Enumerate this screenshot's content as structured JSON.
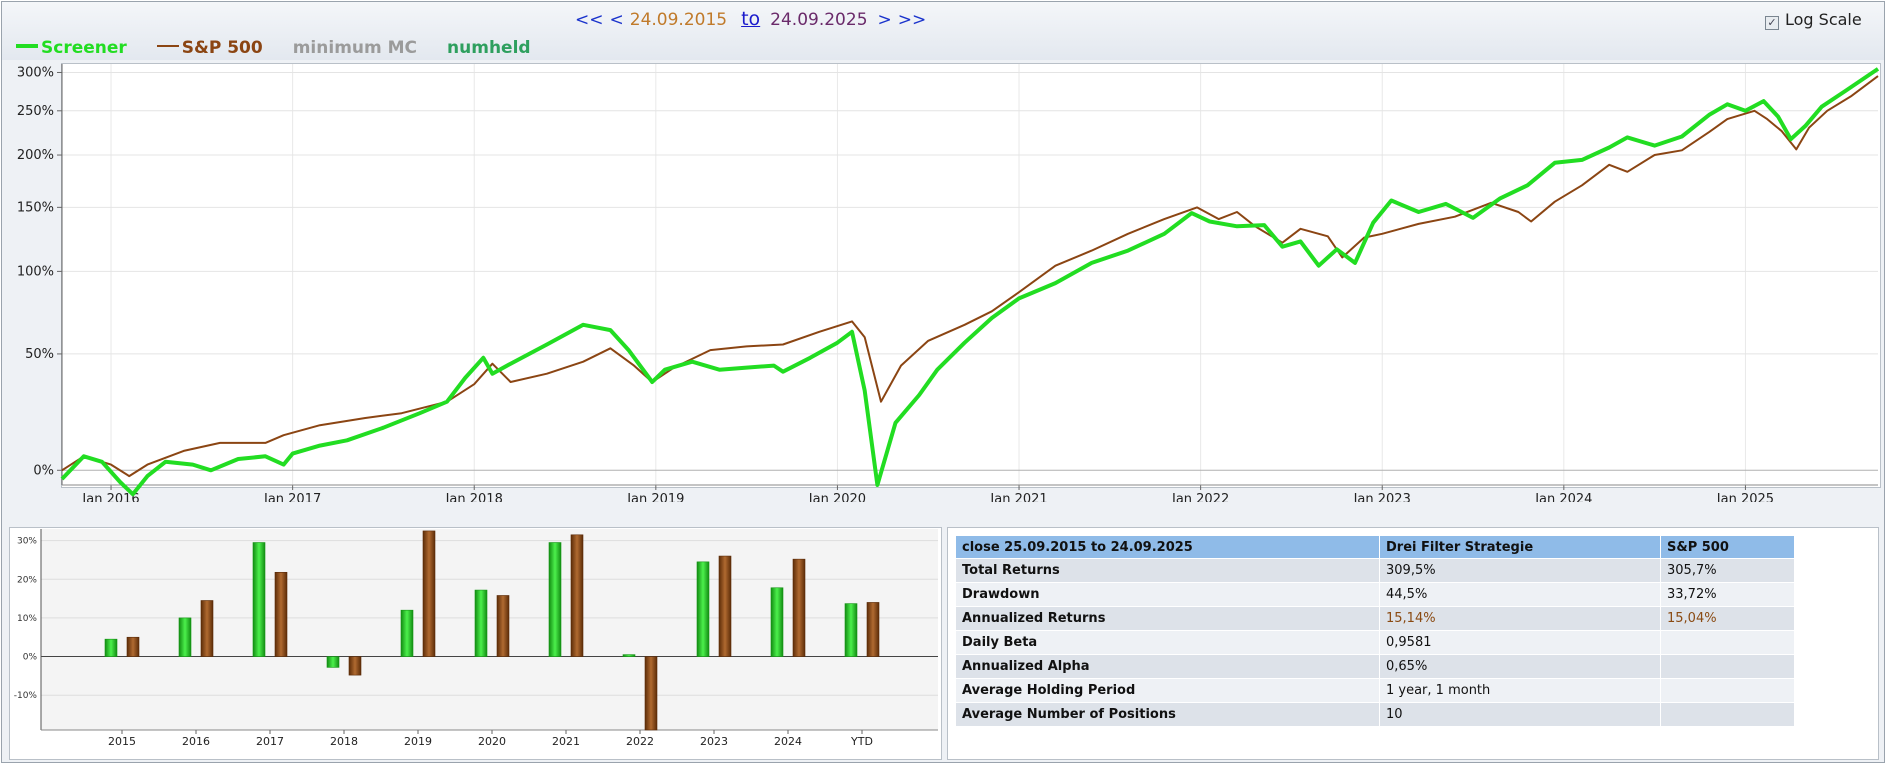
{
  "nav": {
    "first": "<<",
    "prev": "<",
    "start_date": "24.09.2015",
    "to_label": "to",
    "end_date": "24.09.2025",
    "next": ">",
    "last": ">>"
  },
  "log_scale": {
    "label": "Log Scale",
    "checked": true,
    "check_glyph": "✓"
  },
  "legend": [
    {
      "label": "Screener",
      "color": "#22dd22",
      "swatch": true
    },
    {
      "label": "S&P 500",
      "color": "#8b4513",
      "swatch": true
    },
    {
      "label": "minimum MC",
      "color": "#9b9b9b",
      "swatch": false
    },
    {
      "label": "numheld",
      "color": "#2e9f5e",
      "swatch": false
    }
  ],
  "chart_data": [
    {
      "type": "line",
      "log_scale": true,
      "x_tick_labels": [
        "Jan 2016",
        "Jan 2017",
        "Jan 2018",
        "Jan 2019",
        "Jan 2020",
        "Jan 2021",
        "Jan 2022",
        "Jan 2023",
        "Jan 2024",
        "Jan 2025"
      ],
      "x_ticks": [
        2016,
        2017,
        2018,
        2019,
        2020,
        2021,
        2022,
        2023,
        2024,
        2025
      ],
      "xlim": [
        2015.73,
        2025.73
      ],
      "y_ticks": [
        0,
        50,
        100,
        150,
        200,
        250,
        300
      ],
      "y_tick_labels": [
        "0%",
        "50%",
        "100%",
        "150%",
        "200%",
        "250%",
        "300%"
      ],
      "ylim": [
        -5,
        312
      ],
      "grid": true,
      "series": [
        {
          "name": "Screener",
          "color": "#22dd22",
          "points": [
            [
              2015.73,
              -3
            ],
            [
              2015.85,
              5
            ],
            [
              2015.95,
              3
            ],
            [
              2016.05,
              -4
            ],
            [
              2016.12,
              -8
            ],
            [
              2016.2,
              -2
            ],
            [
              2016.3,
              3
            ],
            [
              2016.45,
              2
            ],
            [
              2016.55,
              0
            ],
            [
              2016.7,
              4
            ],
            [
              2016.85,
              5
            ],
            [
              2016.95,
              2
            ],
            [
              2017.0,
              6
            ],
            [
              2017.15,
              9
            ],
            [
              2017.3,
              11
            ],
            [
              2017.5,
              16
            ],
            [
              2017.7,
              22
            ],
            [
              2017.85,
              27
            ],
            [
              2017.95,
              38
            ],
            [
              2018.05,
              48
            ],
            [
              2018.1,
              40
            ],
            [
              2018.2,
              45
            ],
            [
              2018.4,
              55
            ],
            [
              2018.6,
              66
            ],
            [
              2018.75,
              63
            ],
            [
              2018.85,
              52
            ],
            [
              2018.98,
              36
            ],
            [
              2019.05,
              42
            ],
            [
              2019.2,
              46
            ],
            [
              2019.35,
              42
            ],
            [
              2019.5,
              43
            ],
            [
              2019.65,
              44
            ],
            [
              2019.7,
              41
            ],
            [
              2019.85,
              48
            ],
            [
              2020.0,
              56
            ],
            [
              2020.08,
              62
            ],
            [
              2020.15,
              32
            ],
            [
              2020.22,
              -5
            ],
            [
              2020.32,
              18
            ],
            [
              2020.45,
              30
            ],
            [
              2020.55,
              42
            ],
            [
              2020.7,
              56
            ],
            [
              2020.85,
              70
            ],
            [
              2021.0,
              82
            ],
            [
              2021.2,
              92
            ],
            [
              2021.4,
              106
            ],
            [
              2021.6,
              115
            ],
            [
              2021.8,
              128
            ],
            [
              2021.95,
              145
            ],
            [
              2022.05,
              138
            ],
            [
              2022.2,
              134
            ],
            [
              2022.35,
              135
            ],
            [
              2022.45,
              118
            ],
            [
              2022.55,
              122
            ],
            [
              2022.65,
              104
            ],
            [
              2022.75,
              116
            ],
            [
              2022.85,
              106
            ],
            [
              2022.95,
              137
            ],
            [
              2023.05,
              156
            ],
            [
              2023.2,
              146
            ],
            [
              2023.35,
              153
            ],
            [
              2023.5,
              141
            ],
            [
              2023.65,
              158
            ],
            [
              2023.8,
              170
            ],
            [
              2023.95,
              192
            ],
            [
              2024.1,
              195
            ],
            [
              2024.25,
              208
            ],
            [
              2024.35,
              219
            ],
            [
              2024.5,
              210
            ],
            [
              2024.65,
              220
            ],
            [
              2024.8,
              245
            ],
            [
              2024.9,
              258
            ],
            [
              2025.0,
              250
            ],
            [
              2025.1,
              262
            ],
            [
              2025.18,
              243
            ],
            [
              2025.25,
              217
            ],
            [
              2025.33,
              232
            ],
            [
              2025.42,
              255
            ],
            [
              2025.55,
              275
            ],
            [
              2025.73,
              305
            ]
          ]
        },
        {
          "name": "S&P 500",
          "color": "#8b4513",
          "points": [
            [
              2015.73,
              0
            ],
            [
              2015.85,
              5
            ],
            [
              2016.0,
              2
            ],
            [
              2016.1,
              -2
            ],
            [
              2016.2,
              2
            ],
            [
              2016.4,
              7
            ],
            [
              2016.6,
              10
            ],
            [
              2016.85,
              10
            ],
            [
              2016.95,
              13
            ],
            [
              2017.15,
              17
            ],
            [
              2017.4,
              20
            ],
            [
              2017.6,
              22
            ],
            [
              2017.85,
              27
            ],
            [
              2018.0,
              35
            ],
            [
              2018.1,
              45
            ],
            [
              2018.2,
              36
            ],
            [
              2018.4,
              40
            ],
            [
              2018.6,
              46
            ],
            [
              2018.75,
              53
            ],
            [
              2018.88,
              44
            ],
            [
              2018.98,
              36
            ],
            [
              2019.1,
              43
            ],
            [
              2019.3,
              52
            ],
            [
              2019.5,
              54
            ],
            [
              2019.7,
              55
            ],
            [
              2019.9,
              62
            ],
            [
              2020.08,
              68
            ],
            [
              2020.15,
              59
            ],
            [
              2020.24,
              27
            ],
            [
              2020.35,
              44
            ],
            [
              2020.5,
              57
            ],
            [
              2020.7,
              66
            ],
            [
              2020.85,
              74
            ],
            [
              2021.0,
              86
            ],
            [
              2021.2,
              104
            ],
            [
              2021.4,
              115
            ],
            [
              2021.6,
              128
            ],
            [
              2021.8,
              140
            ],
            [
              2021.98,
              150
            ],
            [
              2022.1,
              140
            ],
            [
              2022.2,
              146
            ],
            [
              2022.3,
              134
            ],
            [
              2022.45,
              121
            ],
            [
              2022.55,
              132
            ],
            [
              2022.7,
              126
            ],
            [
              2022.78,
              110
            ],
            [
              2022.9,
              125
            ],
            [
              2023.0,
              128
            ],
            [
              2023.2,
              136
            ],
            [
              2023.4,
              142
            ],
            [
              2023.6,
              154
            ],
            [
              2023.75,
              146
            ],
            [
              2023.82,
              138
            ],
            [
              2023.95,
              155
            ],
            [
              2024.1,
              170
            ],
            [
              2024.25,
              190
            ],
            [
              2024.35,
              183
            ],
            [
              2024.5,
              200
            ],
            [
              2024.65,
              205
            ],
            [
              2024.8,
              225
            ],
            [
              2024.9,
              240
            ],
            [
              2025.05,
              250
            ],
            [
              2025.12,
              240
            ],
            [
              2025.2,
              226
            ],
            [
              2025.28,
              206
            ],
            [
              2025.35,
              230
            ],
            [
              2025.45,
              250
            ],
            [
              2025.58,
              268
            ],
            [
              2025.73,
              295
            ]
          ]
        }
      ]
    },
    {
      "type": "bar",
      "categories": [
        "2015",
        "2016",
        "2017",
        "2018",
        "2019",
        "2020",
        "2021",
        "2022",
        "2023",
        "2024",
        "YTD"
      ],
      "y_ticks": [
        -10,
        0,
        10,
        20,
        30
      ],
      "y_tick_labels": [
        "-10%",
        "0%",
        "10%",
        "20%",
        "30%"
      ],
      "ylim": [
        -19,
        33
      ],
      "series": [
        {
          "name": "Screener",
          "color": "#22cc22",
          "values": [
            4.5,
            10.0,
            29.5,
            -2.8,
            12.0,
            17.2,
            29.5,
            0.5,
            24.5,
            17.8,
            13.7
          ]
        },
        {
          "name": "S&P 500",
          "color": "#8b4513",
          "values": [
            5.0,
            14.5,
            21.8,
            -4.8,
            32.5,
            15.8,
            31.5,
            -19.0,
            26.0,
            25.2,
            14.0
          ]
        }
      ]
    }
  ],
  "stats_table": {
    "headers": [
      "close 25.09.2015 to 24.09.2025",
      "Drei Filter Strategie",
      "S&P 500"
    ],
    "rows": [
      {
        "label": "Total Returns",
        "strategy": "309,5%",
        "sp500": "305,7%",
        "highlight": false
      },
      {
        "label": "Drawdown",
        "strategy": "44,5%",
        "sp500": "33,72%",
        "highlight": false
      },
      {
        "label": "Annualized Returns",
        "strategy": "15,14%",
        "sp500": "15,04%",
        "highlight": true
      },
      {
        "label": "Daily Beta",
        "strategy": "0,9581",
        "sp500": "",
        "highlight": false
      },
      {
        "label": "Annualized Alpha",
        "strategy": "0,65%",
        "sp500": "",
        "highlight": false
      },
      {
        "label": "Average Holding Period",
        "strategy": "1 year, 1 month",
        "sp500": "",
        "highlight": false
      },
      {
        "label": "Average Number of Positions",
        "strategy": "10",
        "sp500": "",
        "highlight": false
      }
    ]
  }
}
